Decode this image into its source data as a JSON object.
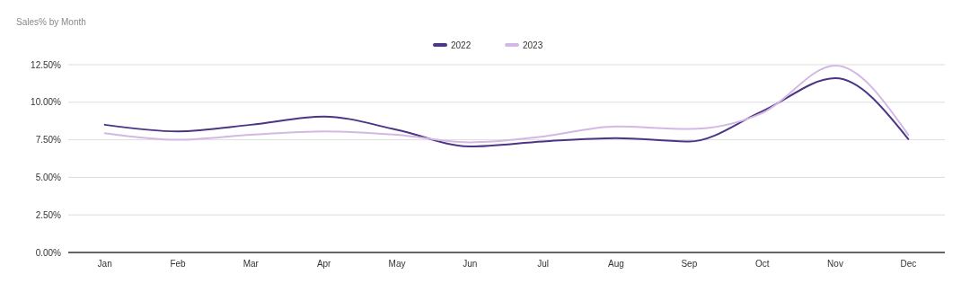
{
  "chart_data": {
    "type": "line",
    "title": "Sales% by Month",
    "categories": [
      "Jan",
      "Feb",
      "Mar",
      "Apr",
      "May",
      "Jun",
      "Jul",
      "Aug",
      "Sep",
      "Oct",
      "Nov",
      "Dec"
    ],
    "series": [
      {
        "name": "2022",
        "color": "#4b3584",
        "values": [
          8.5,
          8.06,
          8.5,
          9.05,
          8.17,
          7.06,
          7.39,
          7.61,
          7.39,
          9.4,
          11.6,
          7.55
        ]
      },
      {
        "name": "2023",
        "color": "#d4b8e4",
        "values": [
          7.94,
          7.5,
          7.83,
          8.06,
          7.83,
          7.33,
          7.72,
          8.39,
          8.22,
          9.28,
          12.44,
          7.83
        ]
      }
    ],
    "ylim": [
      0,
      12.5
    ],
    "yticks": [
      {
        "value": 0,
        "label": "0.00%"
      },
      {
        "value": 2.5,
        "label": "2.50%"
      },
      {
        "value": 5,
        "label": "5.00%"
      },
      {
        "value": 7.5,
        "label": "7.50%"
      },
      {
        "value": 10,
        "label": "10.00%"
      },
      {
        "value": 12.5,
        "label": "12.50%"
      }
    ],
    "grid": "y",
    "legend": "top",
    "marker": "none",
    "line_style": "solid"
  }
}
